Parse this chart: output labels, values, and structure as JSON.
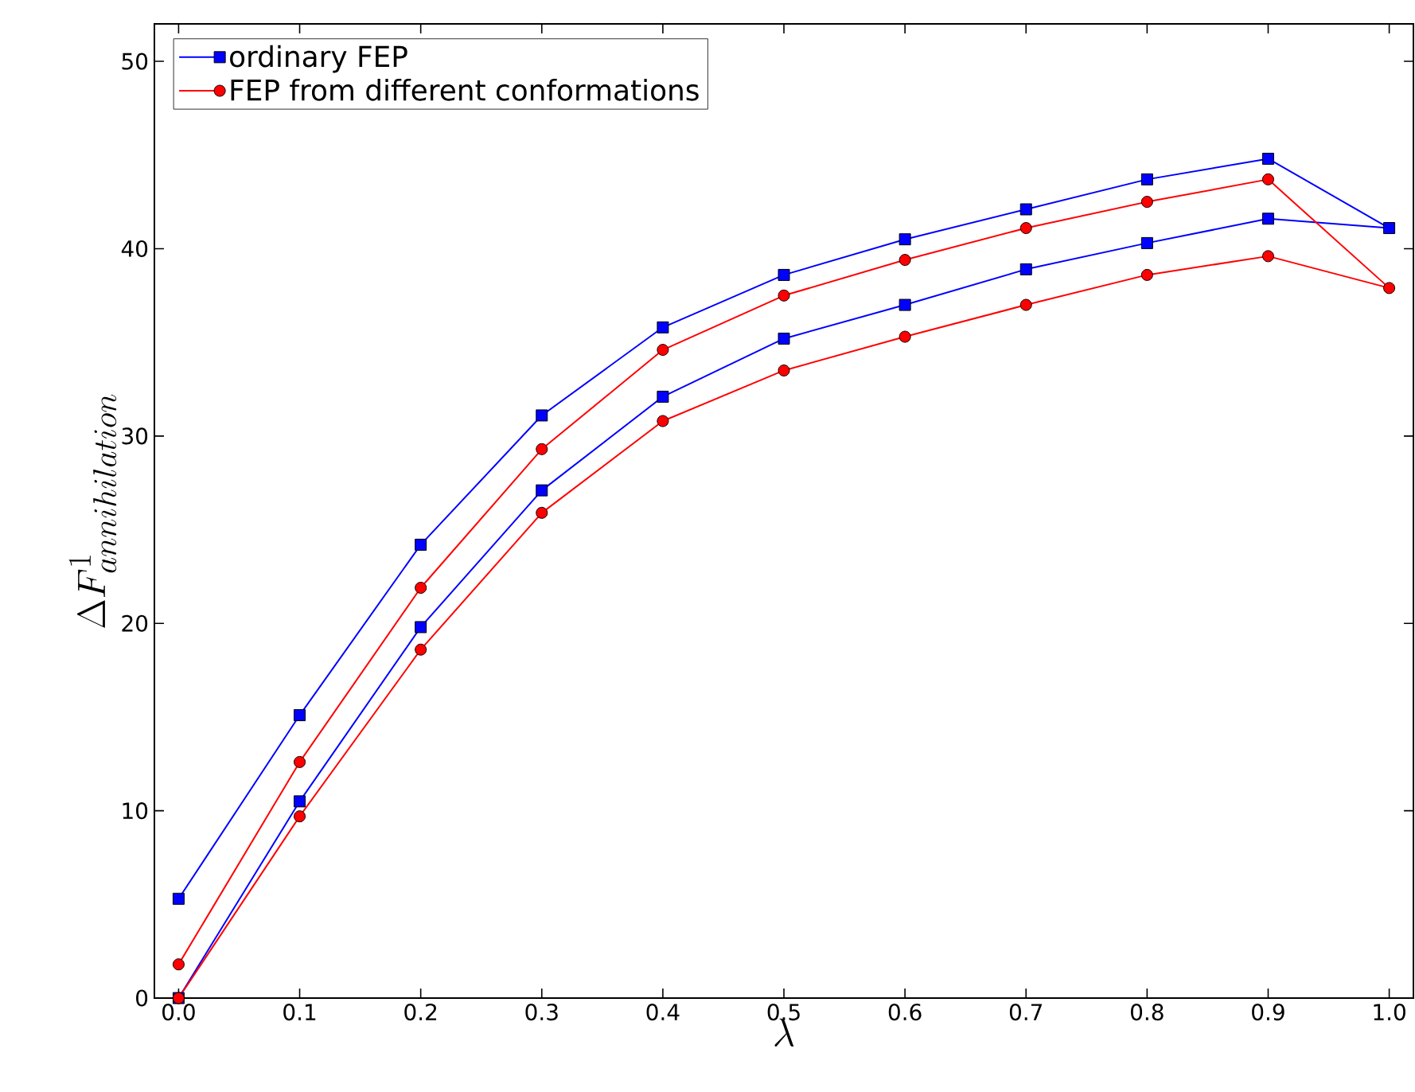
{
  "chart_data": {
    "type": "line",
    "xlabel": "\\lambda",
    "ylabel": "\\Delta F^{1}_{annihilation}",
    "xlim": [
      -0.02,
      1.02
    ],
    "ylim": [
      0,
      52
    ],
    "xticks": [
      {
        "value": 0,
        "label": "0.0"
      },
      {
        "value": 0.1,
        "label": "0.1"
      },
      {
        "value": 0.2,
        "label": "0.2"
      },
      {
        "value": 0.3,
        "label": "0.3"
      },
      {
        "value": 0.4,
        "label": "0.4"
      },
      {
        "value": 0.5,
        "label": "0.5"
      },
      {
        "value": 0.6,
        "label": "0.6"
      },
      {
        "value": 0.7,
        "label": "0.7"
      },
      {
        "value": 0.8,
        "label": "0.8"
      },
      {
        "value": 0.9,
        "label": "0.9"
      },
      {
        "value": 1.0,
        "label": "1.0"
      }
    ],
    "yticks": [
      0,
      10,
      20,
      30,
      40,
      50
    ],
    "legend": "top left",
    "grid": false,
    "series": [
      {
        "name": "ordinary FEP",
        "color": "#0000ff",
        "marker": "square",
        "x": [
          0,
          0.1,
          0.2,
          0.3,
          0.4,
          0.5,
          0.6,
          0.7,
          0.8,
          0.9,
          1.0,
          0.9,
          0.8,
          0.7,
          0.6,
          0.5,
          0.4,
          0.3,
          0.2,
          0.1,
          0
        ],
        "values": [
          5.3,
          15.1,
          24.2,
          31.1,
          35.8,
          38.6,
          40.5,
          42.1,
          43.7,
          44.8,
          41.1,
          41.6,
          40.3,
          38.9,
          37.0,
          35.2,
          32.1,
          27.1,
          19.8,
          10.5,
          0
        ]
      },
      {
        "name": "FEP from different conformations",
        "color": "#ff0000",
        "marker": "circle",
        "x": [
          0,
          0.1,
          0.2,
          0.3,
          0.4,
          0.5,
          0.6,
          0.7,
          0.8,
          0.9,
          1.0,
          0.9,
          0.8,
          0.7,
          0.6,
          0.5,
          0.4,
          0.3,
          0.2,
          0.1,
          0
        ],
        "values": [
          1.8,
          12.6,
          21.9,
          29.3,
          34.6,
          37.5,
          39.4,
          41.1,
          42.5,
          43.7,
          37.9,
          39.6,
          38.6,
          37.0,
          35.3,
          33.5,
          30.8,
          25.9,
          18.6,
          9.7,
          0
        ]
      }
    ]
  }
}
